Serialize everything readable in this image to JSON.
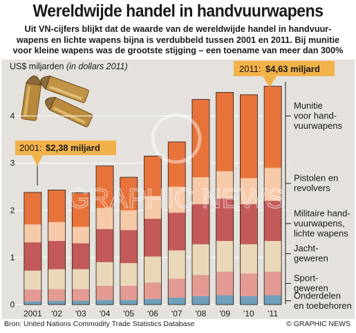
{
  "title": "Wereldwijde handel in handvuurwapens",
  "subtitle_lines": [
    "Uit VN-cijfers blijkt dat de waarde van de wereldwijde handel in handvuur-",
    "wapens en lichte wapens bijna is verdubbeld tussen 2001 en 2011. Bij munitie",
    "voor kleine wapens was de grootste stijging – een toename van meer dan 300%"
  ],
  "unit_label": "US$ miljarden",
  "unit_note": "(in dollars 2011)",
  "source": "Bron: United Nations Commodity Trade Statistics Database",
  "credit": "© GRAPHIC NEWS",
  "watermark": "GRAPHIC NEWS",
  "callout_2001": {
    "year": "2001:",
    "value": "$2,38 miljard"
  },
  "callout_2011": {
    "year": "2011:",
    "value": "$4,63 miljard"
  },
  "colors": {
    "accent_box": "#f2b24a",
    "panel_bg": "#e5e1dc",
    "munitie": "#e8733a",
    "pistolen": "#f6c9a8",
    "militaire": "#c4595a",
    "jacht": "#e8d8b8",
    "sport": "#e39a93",
    "onderdelen": "#6f9fba"
  },
  "chart_data": {
    "type": "bar",
    "stacked": true,
    "categories": [
      "2001",
      "'02",
      "'03",
      "'04",
      "'05",
      "'06",
      "'07",
      "'08",
      "'09",
      "'10",
      "'11"
    ],
    "ylim": [
      0,
      4.8
    ],
    "yticks": [
      0,
      1,
      2,
      3,
      4
    ],
    "series": [
      {
        "name": "Onderdelen en toebehoren",
        "color": "#6f9fba",
        "values": [
          0.07,
          0.08,
          0.08,
          0.1,
          0.1,
          0.12,
          0.15,
          0.18,
          0.2,
          0.18,
          0.2
        ]
      },
      {
        "name": "Sport-geweren",
        "color": "#e39a93",
        "values": [
          0.25,
          0.25,
          0.25,
          0.3,
          0.3,
          0.35,
          0.4,
          0.45,
          0.5,
          0.48,
          0.5
        ]
      },
      {
        "name": "Jacht-geweren",
        "color": "#e8d8b8",
        "values": [
          0.4,
          0.42,
          0.42,
          0.5,
          0.48,
          0.55,
          0.6,
          0.65,
          0.65,
          0.62,
          0.65
        ]
      },
      {
        "name": "Militaire hand-vuurwapens, lichte wapens",
        "color": "#c4595a",
        "values": [
          0.6,
          0.6,
          0.55,
          0.7,
          0.7,
          0.8,
          0.8,
          0.85,
          0.9,
          0.85,
          0.85
        ]
      },
      {
        "name": "Pistolen en revolvers",
        "color": "#f6c9a8",
        "values": [
          0.38,
          0.4,
          0.35,
          0.45,
          0.42,
          0.48,
          0.55,
          0.57,
          0.58,
          0.55,
          0.7
        ]
      },
      {
        "name": "Munitie voor hand-vuurwapens",
        "color": "#e8733a",
        "values": [
          0.68,
          0.68,
          0.72,
          0.89,
          0.7,
          0.85,
          0.95,
          1.65,
          1.67,
          1.77,
          1.73
        ]
      }
    ],
    "legend": [
      {
        "label_lines": [
          "Munitie",
          "voor hand-",
          "vuurwapens"
        ],
        "value": 4.0
      },
      {
        "label_lines": [
          "Pistolen en",
          "revolvers"
        ],
        "value": 2.57
      },
      {
        "label_lines": [
          "Militaire hand-",
          "vuurwapens,",
          "lichte wapens"
        ],
        "value": 1.72
      },
      {
        "label_lines": [
          "Jacht-",
          "geweren"
        ],
        "value": 1.08
      },
      {
        "label_lines": [
          "Sport-",
          "geweren"
        ],
        "value": 0.45
      },
      {
        "label_lines": [
          "Onderdelen",
          "en toebehoren"
        ],
        "value": 0.08
      }
    ]
  }
}
